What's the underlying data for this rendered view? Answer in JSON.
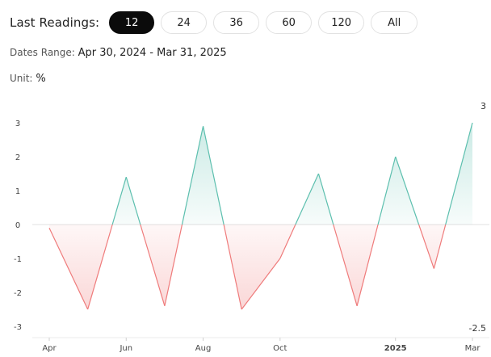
{
  "toolbar": {
    "label": "Last Readings:",
    "buttons": [
      {
        "label": "12",
        "active": true
      },
      {
        "label": "24",
        "active": false
      },
      {
        "label": "36",
        "active": false
      },
      {
        "label": "60",
        "active": false
      },
      {
        "label": "120",
        "active": false
      },
      {
        "label": "All",
        "active": false
      }
    ]
  },
  "dates_range": {
    "label": "Dates Range:",
    "value": "Apr 30, 2024 - Mar 31, 2025"
  },
  "unit": {
    "label": "Unit:",
    "value": "%"
  },
  "colors": {
    "positive_line": "#5cbfae",
    "negative_line": "#ef7b7b",
    "zero_line": "#e0e0e0"
  },
  "chart_data": {
    "type": "area",
    "title": "",
    "x_dates": [
      "Apr 30, 2024",
      "May 31, 2024",
      "Jun 30, 2024",
      "Jul 31, 2024",
      "Aug 31, 2024",
      "Sep 30, 2024",
      "Oct 31, 2024",
      "Nov 30, 2024",
      "Dec 31, 2024",
      "Jan 31, 2025",
      "Feb 28, 2025",
      "Mar 31, 2025"
    ],
    "values": [
      -0.1,
      -2.5,
      1.4,
      -2.4,
      2.9,
      -2.5,
      -1.0,
      1.5,
      -2.4,
      2.0,
      -1.3,
      3.0
    ],
    "x_tick_labels": [
      {
        "label": "Apr",
        "index": 0,
        "bold": false
      },
      {
        "label": "Jun",
        "index": 2,
        "bold": false
      },
      {
        "label": "Aug",
        "index": 4,
        "bold": false
      },
      {
        "label": "Oct",
        "index": 6,
        "bold": false
      },
      {
        "label": "2025",
        "index": 9,
        "bold": true
      },
      {
        "label": "Mar",
        "index": 11,
        "bold": false
      }
    ],
    "y_ticks": [
      "3",
      "2",
      "1",
      "0",
      "-1",
      "-2",
      "-3"
    ],
    "y_tick_values": [
      3,
      2,
      1,
      0,
      -1,
      -2,
      -3
    ],
    "ylim": [
      -3,
      3
    ],
    "max_label": "3",
    "min_label": "-2.5"
  }
}
